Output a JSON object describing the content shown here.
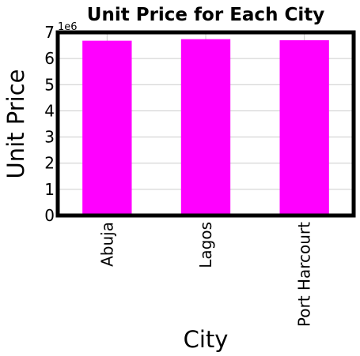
{
  "chart_data": {
    "type": "bar",
    "title": "Unit Price for Each City",
    "xlabel": "City",
    "ylabel": "Unit Price",
    "offset_label": "1e6",
    "categories": [
      "Abuja",
      "Lagos",
      "Port Harcourt"
    ],
    "values": [
      6.68,
      6.74,
      6.7
    ],
    "value_scale": 1000000,
    "ylim": [
      0,
      7
    ],
    "yticks": [
      0,
      1,
      2,
      3,
      4,
      5,
      6,
      7
    ],
    "ytick_labels": [
      "0",
      "1",
      "2",
      "3",
      "4",
      "5",
      "6",
      "7"
    ],
    "grid": true,
    "legend": "none",
    "bar_color": "#ff00ff",
    "grid_color": "#cccccc",
    "frame_color": "#000000"
  }
}
